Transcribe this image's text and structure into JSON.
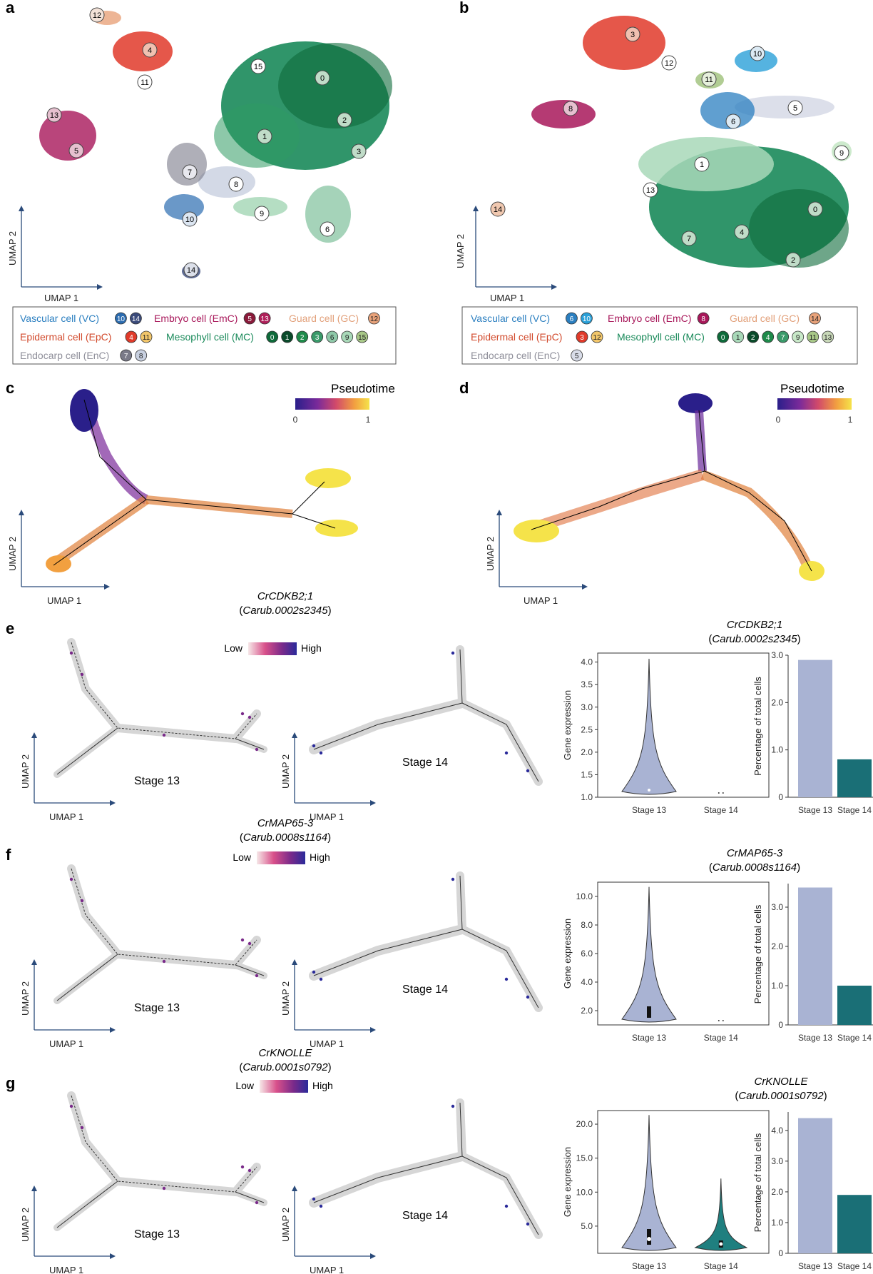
{
  "panels": {
    "a": "a",
    "b": "b",
    "c": "c",
    "d": "d",
    "e": "e",
    "f": "f",
    "g": "g"
  },
  "axes": {
    "umap1": "UMAP 1",
    "umap2": "UMAP 2",
    "gene_expression": "Gene expression",
    "pct_cells": "Percentage of total cells"
  },
  "pseudotime": {
    "title": "Pseudotime",
    "min": "0",
    "max": "1"
  },
  "stages": {
    "s13": "Stage 13",
    "s14": "Stage 14"
  },
  "colorbar": {
    "low": "Low",
    "high": "High"
  },
  "colors": {
    "vc": "#2b7fc0",
    "epc": "#d24a2c",
    "enc": "#8f8f9a",
    "emc": "#a8175a",
    "gc": "#e2a07a",
    "mc": "#1a8a5a",
    "violin13": "#a9b3d3",
    "violin14": "#1f7f7f",
    "bar13": "#a9b3d3",
    "bar14": "#1a6f76",
    "trajectory": "#000000"
  },
  "umap_a": {
    "legend": [
      {
        "label": "Vascular cell (VC)",
        "color": "#2b7fc0",
        "badges": [
          {
            "n": "10",
            "fill": "#2b6cb0",
            "txt": "#fff"
          },
          {
            "n": "14",
            "fill": "#3a4a7a",
            "txt": "#fff"
          }
        ]
      },
      {
        "label": "Embryo cell (EmC)",
        "color": "#a8175a",
        "badges": [
          {
            "n": "5",
            "fill": "#8a1a3a",
            "txt": "#fff"
          },
          {
            "n": "13",
            "fill": "#b0205a",
            "txt": "#fff"
          }
        ]
      },
      {
        "label": "Guard cell (GC)",
        "color": "#e2a07a",
        "badges": [
          {
            "n": "12",
            "fill": "#e8a27a",
            "txt": "#222"
          }
        ]
      },
      {
        "label": "Epidermal cell (EpC)",
        "color": "#d24a2c",
        "badges": [
          {
            "n": "4",
            "fill": "#e03a2a",
            "txt": "#fff"
          },
          {
            "n": "11",
            "fill": "#f2c66a",
            "txt": "#222"
          }
        ]
      },
      {
        "label": "Mesophyll cell (MC)",
        "color": "#1a8a5a",
        "badges": [
          {
            "n": "0",
            "fill": "#0e6a3a",
            "txt": "#fff"
          },
          {
            "n": "1",
            "fill": "#0a4a2a",
            "txt": "#fff"
          },
          {
            "n": "2",
            "fill": "#1e8a4a",
            "txt": "#fff"
          },
          {
            "n": "3",
            "fill": "#3a9a6a",
            "txt": "#fff"
          },
          {
            "n": "6",
            "fill": "#8ec8a8",
            "txt": "#222"
          },
          {
            "n": "9",
            "fill": "#a8d8b8",
            "txt": "#222"
          },
          {
            "n": "15",
            "fill": "#a8c888",
            "txt": "#222"
          }
        ]
      },
      {
        "label": "Endocarp cell (EnC)",
        "color": "#8f8f9a",
        "badges": [
          {
            "n": "7",
            "fill": "#7a7a88",
            "txt": "#fff"
          },
          {
            "n": "8",
            "fill": "#c8d0e0",
            "txt": "#222"
          }
        ]
      }
    ],
    "cluster_labels": [
      "12",
      "4",
      "11",
      "13",
      "5",
      "15",
      "0",
      "2",
      "3",
      "1",
      "7",
      "8",
      "9",
      "6",
      "10",
      "14"
    ]
  },
  "umap_b": {
    "legend": [
      {
        "label": "Vascular cell (VC)",
        "color": "#2b7fc0",
        "badges": [
          {
            "n": "6",
            "fill": "#2b7fc0",
            "txt": "#fff"
          },
          {
            "n": "10",
            "fill": "#2aa0d8",
            "txt": "#fff"
          }
        ]
      },
      {
        "label": "Embryo cell (EmC)",
        "color": "#a8175a",
        "badges": [
          {
            "n": "8",
            "fill": "#a8175a",
            "txt": "#fff"
          }
        ]
      },
      {
        "label": "Guard cell (GC)",
        "color": "#e2a07a",
        "badges": [
          {
            "n": "14",
            "fill": "#e8a27a",
            "txt": "#222"
          }
        ]
      },
      {
        "label": "Epidermal cell (EpC)",
        "color": "#d24a2c",
        "badges": [
          {
            "n": "3",
            "fill": "#e03a2a",
            "txt": "#fff"
          },
          {
            "n": "12",
            "fill": "#f2c66a",
            "txt": "#222"
          }
        ]
      },
      {
        "label": "Mesophyll cell (MC)",
        "color": "#1a8a5a",
        "badges": [
          {
            "n": "0",
            "fill": "#0e6a3a",
            "txt": "#fff"
          },
          {
            "n": "1",
            "fill": "#a8d8b8",
            "txt": "#222"
          },
          {
            "n": "2",
            "fill": "#0a4a2a",
            "txt": "#fff"
          },
          {
            "n": "4",
            "fill": "#1e8a4a",
            "txt": "#fff"
          },
          {
            "n": "7",
            "fill": "#3a9a6a",
            "txt": "#fff"
          },
          {
            "n": "9",
            "fill": "#c8e8c8",
            "txt": "#222"
          },
          {
            "n": "11",
            "fill": "#a8c888",
            "txt": "#222"
          },
          {
            "n": "13",
            "fill": "#c8d8b8",
            "txt": "#222"
          }
        ]
      },
      {
        "label": "Endocarp cell (EnC)",
        "color": "#8f8f9a",
        "badges": [
          {
            "n": "5",
            "fill": "#d8dce8",
            "txt": "#222"
          }
        ]
      }
    ],
    "cluster_labels": [
      "3",
      "12",
      "10",
      "11",
      "8",
      "5",
      "6",
      "9",
      "1",
      "13",
      "0",
      "4",
      "7",
      "2",
      "14"
    ]
  },
  "genes": {
    "e": {
      "name": "CrCDKB2;1",
      "id": "Carub.0002s2345"
    },
    "f": {
      "name": "CrMAP65-3",
      "id": "Carub.0008s1164"
    },
    "g": {
      "name": "CrKNOLLE",
      "id": "Carub.0001s0792"
    }
  },
  "chart_data": [
    {
      "type": "violin",
      "panel": "e",
      "title": "CrCDKB2;1 (Carub.0002s2345)",
      "categories": [
        "Stage 13",
        "Stage 14"
      ],
      "ylabel": "Gene expression",
      "ylim": [
        1.0,
        4.2
      ],
      "yticks": [
        "1.0",
        "1.5",
        "2.0",
        "2.5",
        "3.0",
        "3.5",
        "4.0"
      ],
      "yticks_values": [
        1.0,
        1.5,
        2.0,
        2.5,
        3.0,
        3.5,
        4.0
      ]
    },
    {
      "type": "bar",
      "panel": "e",
      "categories": [
        "Stage 13",
        "Stage 14"
      ],
      "values": [
        2.9,
        0.8
      ],
      "ylabel": "Percentage of total cells",
      "ylim": [
        0,
        3.0
      ],
      "yticks": [
        "0",
        "1.0",
        "2.0",
        "3.0"
      ],
      "yticks_values": [
        0,
        1.0,
        2.0,
        3.0
      ]
    },
    {
      "type": "violin",
      "panel": "f",
      "title": "CrMAP65-3 (Carub.0008s1164)",
      "categories": [
        "Stage 13",
        "Stage 14"
      ],
      "ylabel": "Gene expression",
      "ylim": [
        1.0,
        11.0
      ],
      "yticks": [
        "2.0",
        "4.0",
        "6.0",
        "8.0",
        "10.0"
      ],
      "yticks_values": [
        2.0,
        4.0,
        6.0,
        8.0,
        10.0
      ]
    },
    {
      "type": "bar",
      "panel": "f",
      "categories": [
        "Stage 13",
        "Stage 14"
      ],
      "values": [
        3.5,
        1.0
      ],
      "ylabel": "Percentage of total cells",
      "ylim": [
        0,
        3.6
      ],
      "yticks": [
        "0",
        "1.0",
        "2.0",
        "3.0"
      ],
      "yticks_values": [
        0,
        1.0,
        2.0,
        3.0
      ]
    },
    {
      "type": "violin",
      "panel": "g",
      "title": "CrKNOLLE (Carub.0001s0792)",
      "categories": [
        "Stage 13",
        "Stage 14"
      ],
      "ylabel": "Gene expression",
      "ylim": [
        1.0,
        22.0
      ],
      "yticks": [
        "5.0",
        "10.0",
        "15.0",
        "20.0"
      ],
      "yticks_values": [
        5.0,
        10.0,
        15.0,
        20.0
      ]
    },
    {
      "type": "bar",
      "panel": "g",
      "categories": [
        "Stage 13",
        "Stage 14"
      ],
      "values": [
        4.4,
        1.9
      ],
      "ylabel": "Percentage of total cells",
      "ylim": [
        0,
        4.6
      ],
      "yticks": [
        "0",
        "1.0",
        "2.0",
        "3.0",
        "4.0"
      ],
      "yticks_values": [
        0,
        1.0,
        2.0,
        3.0,
        4.0
      ]
    }
  ]
}
